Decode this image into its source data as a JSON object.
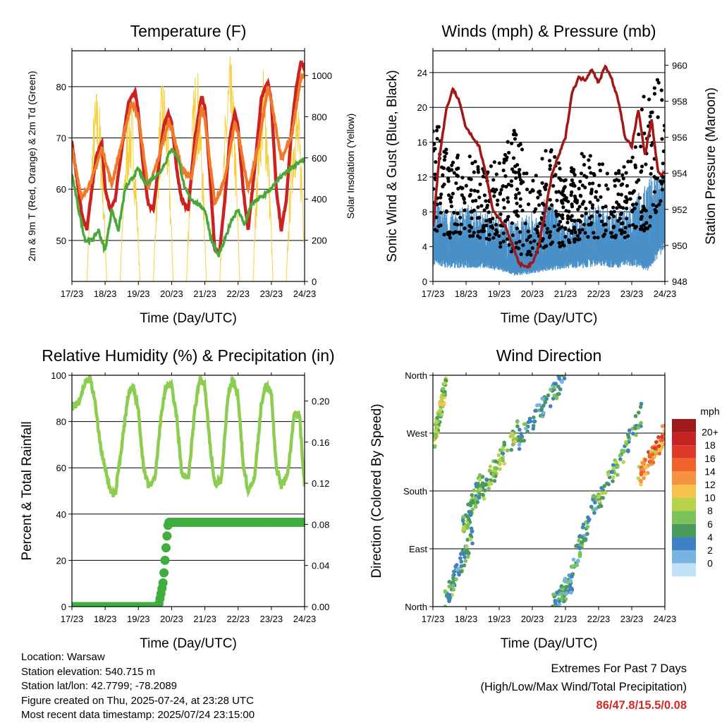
{
  "chart_data": [
    {
      "type": "line",
      "title": "Temperature (F)",
      "xlabel": "Time (Day/UTC)",
      "ylabel": "2m & 9m T (Red, Orange) & 2m Td (Green)",
      "y2label": "Solar Insolation (Yellow)",
      "x_ticks": [
        "17/23",
        "18/23",
        "19/23",
        "20/23",
        "21/23",
        "22/23",
        "23/23",
        "24/23"
      ],
      "ylim": [
        42,
        87
      ],
      "yticks": [
        50,
        60,
        70,
        80
      ],
      "y2lim": [
        0,
        1120
      ],
      "y2ticks": [
        0,
        200,
        400,
        600,
        800,
        1000
      ],
      "grid": true,
      "series": [
        {
          "name": "2m T",
          "color": "#cc2222",
          "x": [
            0,
            0.15,
            0.3,
            0.45,
            0.6,
            0.75,
            0.9,
            1.0,
            1.15,
            1.3,
            1.5,
            1.7,
            1.9,
            2.0,
            2.15,
            2.3,
            2.45,
            2.6,
            2.75,
            2.9,
            3.0,
            3.15,
            3.3,
            3.5,
            3.7,
            3.9,
            4.0,
            4.15,
            4.3,
            4.45,
            4.6,
            4.75,
            4.9,
            5.0,
            5.15,
            5.3,
            5.5,
            5.7,
            5.9,
            6.0,
            6.15,
            6.3,
            6.45,
            6.6,
            6.75,
            6.9,
            7.0
          ],
          "y": [
            69,
            62,
            55,
            52,
            60,
            67,
            69,
            60,
            56,
            58,
            68,
            77,
            79,
            75,
            64,
            57,
            56,
            64,
            72,
            75,
            73,
            64,
            58,
            56,
            70,
            78,
            76,
            63,
            48,
            48,
            58,
            70,
            75,
            72,
            60,
            52,
            64,
            78,
            81,
            77,
            60,
            52,
            58,
            71,
            80,
            85,
            83
          ]
        },
        {
          "name": "9m T",
          "color": "#f07a2a",
          "x": [
            0,
            0.3,
            0.6,
            0.9,
            1.2,
            1.5,
            1.8,
            2.0,
            2.3,
            2.6,
            2.9,
            3.0,
            3.3,
            3.6,
            3.9,
            4.0,
            4.3,
            4.6,
            4.9,
            5.0,
            5.3,
            5.6,
            5.9,
            6.0,
            6.3,
            6.6,
            6.9,
            7.0
          ],
          "y": [
            68,
            58,
            62,
            68,
            61,
            69,
            77,
            74,
            60,
            66,
            73,
            72,
            64,
            62,
            76,
            74,
            57,
            62,
            73,
            71,
            60,
            68,
            80,
            77,
            66,
            70,
            82,
            82
          ]
        },
        {
          "name": "2m Td",
          "color": "#4aa83a",
          "x": [
            0,
            0.2,
            0.4,
            0.6,
            0.8,
            1.0,
            1.2,
            1.4,
            1.6,
            1.8,
            2.0,
            2.2,
            2.4,
            2.6,
            2.8,
            3.0,
            3.2,
            3.4,
            3.6,
            3.8,
            4.0,
            4.2,
            4.4,
            4.6,
            4.8,
            5.0,
            5.2,
            5.4,
            5.6,
            5.8,
            6.0,
            6.2,
            6.4,
            6.6,
            6.8,
            7.0
          ],
          "y": [
            63,
            56,
            50,
            50,
            52,
            48,
            56,
            52,
            60,
            62,
            64,
            61,
            62,
            63,
            65,
            68,
            66,
            60,
            58,
            57,
            56,
            50,
            47,
            50,
            54,
            56,
            53,
            57,
            58,
            59,
            60,
            62,
            63,
            64,
            65,
            66
          ]
        }
      ],
      "insolation": {
        "name": "Solar Insolation",
        "color": "#f6d040",
        "day_starts": [
          0.45,
          1.45,
          2.45,
          3.45,
          4.45,
          5.45,
          6.45
        ],
        "peaks": [
          950,
          900,
          1000,
          1060,
          1100,
          1050,
          900
        ]
      }
    },
    {
      "type": "scatter",
      "title": "Winds (mph) & Pressure (mb)",
      "xlabel": "Time (Day/UTC)",
      "ylabel": "Sonic Wind & Gust (Blue, Black)",
      "y2label": "Station Pressure (Maroon)",
      "x_ticks": [
        "17/23",
        "18/23",
        "19/23",
        "20/23",
        "21/23",
        "22/23",
        "23/23",
        "24/23"
      ],
      "ylim": [
        0,
        26.5
      ],
      "yticks": [
        0,
        4,
        8,
        12,
        16,
        20,
        24
      ],
      "y2lim": [
        948,
        960.8
      ],
      "y2ticks": [
        948,
        950,
        952,
        954,
        956,
        958,
        960
      ],
      "grid": true,
      "wind_env": {
        "name": "Sonic Wind",
        "color": "#4a90c8",
        "x": [
          0,
          0.5,
          1.0,
          1.5,
          2.0,
          2.5,
          3.0,
          3.5,
          4.0,
          4.5,
          5.0,
          5.5,
          6.0,
          6.5,
          7.0
        ],
        "low": [
          3,
          2.5,
          2.5,
          2.5,
          2,
          1,
          1.5,
          2,
          2.5,
          2.5,
          3,
          2.5,
          3,
          2,
          6
        ],
        "high": [
          10,
          8,
          9,
          8,
          8,
          7,
          8,
          10,
          6,
          8,
          9,
          8,
          9,
          12,
          13
        ]
      },
      "gust_env": {
        "name": "Gust",
        "color": "#000000",
        "x": [
          0,
          0.5,
          1.0,
          1.5,
          2.0,
          2.5,
          3.0,
          3.5,
          4.0,
          4.5,
          5.0,
          5.5,
          6.0,
          6.5,
          7.0
        ],
        "low": [
          6,
          5,
          5,
          5,
          4,
          3,
          3,
          4,
          4,
          5,
          5,
          5,
          5,
          6,
          10
        ],
        "high": [
          20,
          14,
          15,
          13,
          14,
          18,
          12,
          16,
          12,
          15,
          16,
          13,
          14,
          24,
          23
        ]
      },
      "pressure": {
        "name": "Station Pressure",
        "color": "#a01818",
        "x": [
          0,
          0.2,
          0.4,
          0.6,
          0.8,
          1.0,
          1.2,
          1.4,
          1.6,
          1.8,
          2.0,
          2.2,
          2.4,
          2.6,
          2.8,
          3.0,
          3.2,
          3.4,
          3.6,
          3.8,
          4.0,
          4.2,
          4.4,
          4.6,
          4.8,
          5.0,
          5.2,
          5.4,
          5.6,
          5.8,
          6.0,
          6.2,
          6.4,
          6.6,
          6.8,
          7.0
        ],
        "y": [
          951,
          955,
          957.5,
          958.7,
          958,
          956.5,
          956,
          955.5,
          954,
          952,
          951.5,
          951,
          950,
          949,
          948.8,
          949,
          950,
          952,
          954,
          955,
          956,
          958.5,
          959.3,
          959.2,
          959.8,
          959,
          960,
          959.2,
          958,
          956,
          955.5,
          957.5,
          955,
          957,
          954,
          954
        ]
      }
    },
    {
      "type": "line",
      "title": "Relative Humidity (%) & Precipitation (in)",
      "xlabel": "Time (Day/UTC)",
      "ylabel": "Percent & Total Rainfall",
      "x_ticks": [
        "17/23",
        "18/23",
        "19/23",
        "20/23",
        "21/23",
        "22/23",
        "23/23",
        "24/23"
      ],
      "ylim": [
        0,
        100
      ],
      "yticks": [
        0,
        20,
        40,
        60,
        80,
        100
      ],
      "y2lim": [
        0,
        0.225
      ],
      "y2ticks": [
        "0.00",
        "0.04",
        "0.08",
        "0.12",
        "0.16",
        "0.20"
      ],
      "grid": true,
      "series": [
        {
          "name": "Relative Humidity",
          "color": "#8ccc50",
          "x": [
            0,
            0.2,
            0.4,
            0.55,
            0.7,
            0.85,
            1.0,
            1.15,
            1.3,
            1.5,
            1.7,
            1.85,
            2.0,
            2.15,
            2.3,
            2.5,
            2.7,
            2.85,
            3.0,
            3.15,
            3.3,
            3.5,
            3.7,
            3.85,
            4.0,
            4.15,
            4.3,
            4.5,
            4.7,
            4.85,
            5.0,
            5.15,
            5.3,
            5.5,
            5.7,
            5.85,
            6.0,
            6.15,
            6.3,
            6.5,
            6.7,
            6.85,
            7.0
          ],
          "y": [
            86,
            88,
            97,
            99,
            88,
            70,
            60,
            50,
            48,
            70,
            92,
            95,
            85,
            60,
            52,
            55,
            85,
            96,
            95,
            82,
            58,
            55,
            85,
            99,
            95,
            70,
            53,
            55,
            92,
            98,
            90,
            62,
            50,
            56,
            88,
            96,
            92,
            60,
            52,
            58,
            85,
            82,
            52
          ]
        },
        {
          "name": "Total Precipitation",
          "color": "#3fae3f",
          "x": [
            0,
            2.6,
            2.65,
            2.7,
            2.75,
            2.8,
            2.85,
            2.9,
            3.0,
            7.0
          ],
          "y": [
            0,
            0,
            0.008,
            0.016,
            0.025,
            0.045,
            0.065,
            0.082,
            0.082,
            0.082
          ]
        }
      ]
    },
    {
      "type": "scatter",
      "title": "Wind Direction",
      "xlabel": "Time (Day/UTC)",
      "ylabel": "Direction (Colored By Speed)",
      "x_ticks": [
        "17/23",
        "18/23",
        "19/23",
        "20/23",
        "21/23",
        "22/23",
        "23/23",
        "24/23"
      ],
      "ylim": [
        0,
        360
      ],
      "yticks": [
        "North",
        "East",
        "South",
        "West",
        "North"
      ],
      "grid": true,
      "colorbar": {
        "unit": "mph",
        "labels": [
          "20+",
          "18",
          "16",
          "14",
          "12",
          "10",
          "8",
          "6",
          "4",
          "2",
          "0"
        ],
        "colors": [
          "#9e1b1b",
          "#c42424",
          "#de3a2a",
          "#f0642c",
          "#f79340",
          "#f8c24e",
          "#b8d24a",
          "#7cc35a",
          "#4a9a5c",
          "#3f82c3",
          "#78b4e0",
          "#bfe2f6"
        ]
      },
      "clusters": [
        {
          "x0": 0.0,
          "x1": 0.4,
          "d0": 250,
          "d1": 350,
          "speed": 8
        },
        {
          "x0": 0.3,
          "x1": 1.2,
          "d0": 0,
          "d1": 110,
          "speed": 5
        },
        {
          "x0": 0.9,
          "x1": 1.5,
          "d0": 120,
          "d1": 200,
          "speed": 6
        },
        {
          "x0": 1.5,
          "x1": 2.6,
          "d0": 180,
          "d1": 280,
          "speed": 7
        },
        {
          "x0": 2.6,
          "x1": 4.0,
          "d0": 260,
          "d1": 360,
          "speed": 4
        },
        {
          "x0": 3.6,
          "x1": 4.2,
          "d0": 0,
          "d1": 40,
          "speed": 4
        },
        {
          "x0": 4.0,
          "x1": 5.0,
          "d0": 30,
          "d1": 180,
          "speed": 4
        },
        {
          "x0": 5.0,
          "x1": 6.3,
          "d0": 160,
          "d1": 300,
          "speed": 6
        },
        {
          "x0": 6.2,
          "x1": 7.0,
          "d0": 200,
          "d1": 270,
          "speed": 13
        }
      ]
    }
  ],
  "footer": {
    "location": "Location: Warsaw",
    "elevation": "Station elevation: 540.715 m",
    "latlon": "Station lat/lon: 42.7799; -78.2089",
    "created": "Figure created on Thu, 2025-07-24, at 23:28 UTC",
    "latest": "Most recent data timestamp: 2025/07/24 23:15:00"
  },
  "extremes": {
    "title": "Extremes For Past 7 Days",
    "subtitle": "(High/Low/Max Wind/Total Precipitation)",
    "values": "86/47.8/15.5/0.08"
  }
}
